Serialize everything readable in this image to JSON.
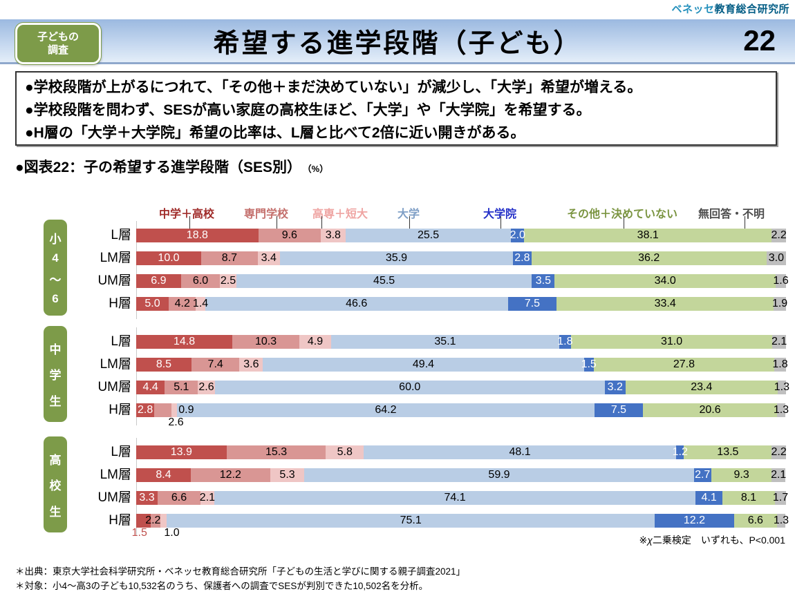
{
  "brand": {
    "part1": "ベネッセ",
    "part2": "教育総合研究所"
  },
  "badge": {
    "line1": "子どもの",
    "line2": "調査"
  },
  "header": {
    "title": "希望する進学段階（子ども）",
    "page_number": "22"
  },
  "summary": {
    "points": [
      "●学校段階が上がるにつれて、「その他＋まだ決めていない」が減少し、「大学」希望が増える。",
      "●学校段階を問わず、SESが高い家庭の高校生ほど、「大学」や「大学院」を希望する。",
      "●H層の「大学＋大学院」希望の比率は、L層と比べて2倍に近い開きがある。"
    ]
  },
  "figure": {
    "title": "●図表22：子の希望する進学段階（SES別）",
    "unit": "（%）"
  },
  "note": {
    "prefix": "※",
    "chi": "χ",
    "rest": "二乗検定　いずれも、P<0.001"
  },
  "footnotes": [
    "＊出典：東京大学社会科学研究所・ベネッセ教育総合研究所「子どもの生活と学びに関する親子調査2021」",
    "＊対象：小4～高3の子ども10,532名のうち、保護者への調査でSESが判別できた10,502名を分析。"
  ],
  "chart_data": {
    "type": "bar",
    "stacked": true,
    "orientation": "horizontal",
    "unit": "%",
    "xlim": [
      0,
      100
    ],
    "categories": [
      "中学＋高校",
      "専門学校",
      "高専＋短大",
      "大学",
      "大学院",
      "その他＋決めていない",
      "無回答・不明"
    ],
    "series_colors": [
      "#C0504D",
      "#D99694",
      "#EFC6C5",
      "#B9CDE5",
      "#4472C4",
      "#C3D69B",
      "#BFBFBF"
    ],
    "legend_text_colors": [
      "#A02C2A",
      "#C4706D",
      "#EFA4A2",
      "#7F9FC6",
      "#2430C8",
      "#7A9440",
      "#4D4D4D"
    ],
    "groups": [
      {
        "label": "小4～6",
        "rows": [
          {
            "label": "L層",
            "values": [
              18.8,
              9.6,
              3.8,
              25.5,
              2.0,
              38.1,
              2.2
            ]
          },
          {
            "label": "LM層",
            "values": [
              10.0,
              8.7,
              3.4,
              35.9,
              2.8,
              36.2,
              3.0
            ]
          },
          {
            "label": "UM層",
            "values": [
              6.9,
              6.0,
              2.5,
              45.5,
              3.5,
              34.0,
              1.6
            ]
          },
          {
            "label": "H層",
            "values": [
              5.0,
              4.2,
              1.4,
              46.6,
              7.5,
              33.4,
              1.9
            ]
          }
        ]
      },
      {
        "label": "中学生",
        "rows": [
          {
            "label": "L層",
            "values": [
              14.8,
              10.3,
              4.9,
              35.1,
              1.8,
              31.0,
              2.1
            ]
          },
          {
            "label": "LM層",
            "values": [
              8.5,
              7.4,
              3.6,
              49.4,
              1.5,
              27.8,
              1.8
            ]
          },
          {
            "label": "UM層",
            "values": [
              4.4,
              5.1,
              2.6,
              60.0,
              3.2,
              23.4,
              1.3
            ]
          },
          {
            "label": "H層",
            "values": [
              2.8,
              2.6,
              0.9,
              64.2,
              7.5,
              20.6,
              1.3
            ]
          }
        ]
      },
      {
        "label": "高校生",
        "rows": [
          {
            "label": "L層",
            "values": [
              13.9,
              15.3,
              5.8,
              48.1,
              1.2,
              13.5,
              2.2
            ]
          },
          {
            "label": "LM層",
            "values": [
              8.4,
              12.2,
              5.3,
              59.9,
              2.7,
              9.3,
              2.1
            ]
          },
          {
            "label": "UM層",
            "values": [
              3.3,
              6.6,
              2.1,
              74.1,
              4.1,
              8.1,
              1.7
            ]
          },
          {
            "label": "H層",
            "values": [
              2.2,
              1.5,
              1.0,
              75.1,
              12.2,
              6.6,
              1.3
            ]
          }
        ]
      }
    ],
    "label_overrides": [
      {
        "group": 1,
        "row": 3,
        "seg": 1,
        "pos": "below",
        "dx": 19
      },
      {
        "group": 1,
        "row": 3,
        "seg": 2,
        "pos": "after"
      },
      {
        "group": 2,
        "row": 3,
        "seg": 0,
        "color": "#000000",
        "dx": 14
      },
      {
        "group": 2,
        "row": 3,
        "seg": 1,
        "pos": "below",
        "dx": -23,
        "color": "#C0504D"
      },
      {
        "group": 2,
        "row": 3,
        "seg": 2,
        "pos": "below",
        "dx": 12
      }
    ],
    "white_label_segments": [
      0,
      4
    ]
  }
}
